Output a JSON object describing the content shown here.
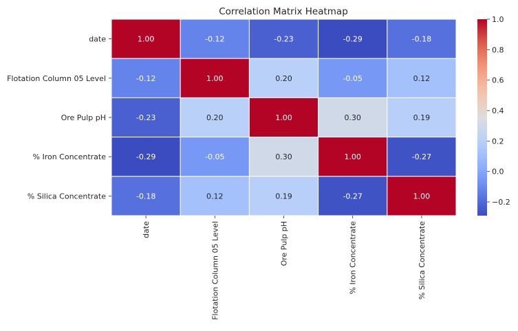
{
  "chart_data": {
    "type": "heatmap",
    "title": "Correlation Matrix Heatmap",
    "xlabel": "",
    "ylabel": "",
    "row_labels": [
      "date",
      "Flotation Column 05 Level",
      "Ore Pulp pH",
      "% Iron Concentrate",
      "% Silica Concentrate"
    ],
    "col_labels": [
      "date",
      "Flotation Column 05 Level",
      "Ore Pulp pH",
      "% Iron Concentrate",
      "% Silica Concentrate"
    ],
    "values": [
      [
        1.0,
        -0.12,
        -0.23,
        -0.29,
        -0.18
      ],
      [
        -0.12,
        1.0,
        0.2,
        -0.05,
        0.12
      ],
      [
        -0.23,
        0.2,
        1.0,
        0.3,
        0.19
      ],
      [
        -0.29,
        -0.05,
        0.3,
        1.0,
        -0.27
      ],
      [
        -0.18,
        0.12,
        0.19,
        -0.27,
        1.0
      ]
    ],
    "annotation_format": "0.00",
    "colormap": "coolwarm",
    "colorbar": {
      "range": [
        -0.29,
        1.0
      ],
      "ticks": [
        -0.2,
        0.0,
        0.2,
        0.4,
        0.6,
        0.8,
        1.0
      ],
      "tick_labels": [
        "−0.2",
        "0.0",
        "0.2",
        "0.4",
        "0.6",
        "0.8",
        "1.0"
      ],
      "placement": "right"
    },
    "grid_lines_color": "#ffffff"
  }
}
